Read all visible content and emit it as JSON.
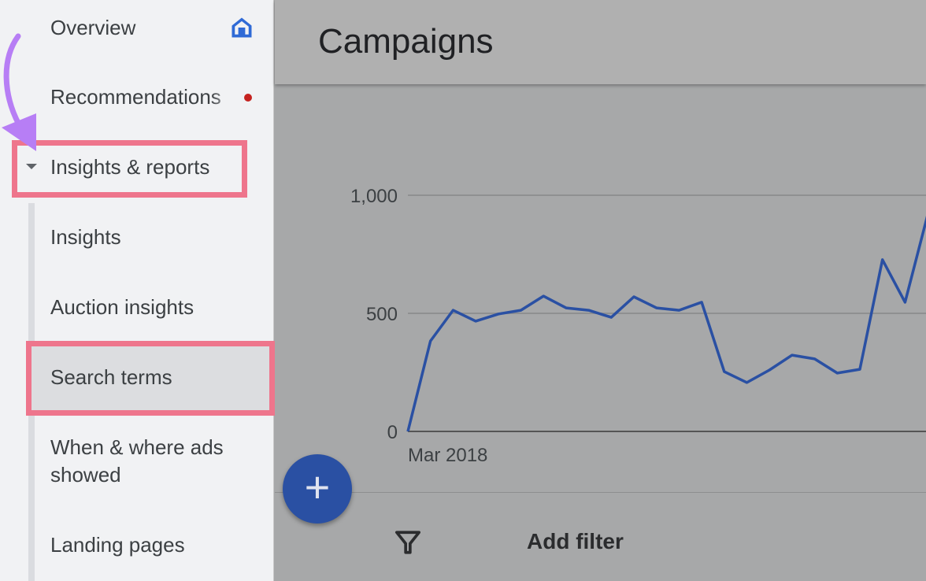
{
  "sidebar": {
    "items": [
      {
        "label": "Overview",
        "icon": "home-icon"
      },
      {
        "label": "Recommendations",
        "badge": "red-dot"
      },
      {
        "label": "Insights & reports",
        "expanded": true
      },
      {
        "label": "Insights"
      },
      {
        "label": "Auction insights"
      },
      {
        "label": "Search terms",
        "selected": true
      },
      {
        "label": "When & where ads showed",
        "line1": "When & where ads",
        "line2": "showed"
      },
      {
        "label": "Landing pages"
      }
    ]
  },
  "main": {
    "title": "Campaigns",
    "add_filter": "Add filter",
    "fab": "+"
  },
  "colors": {
    "accent": "#2a50a3",
    "highlight": "#ee758c",
    "annotation_arrow": "#b77ef5",
    "badge": "#c5221f"
  },
  "chart_data": {
    "type": "line",
    "y_ticks": [
      "1,000",
      "500",
      "0"
    ],
    "ylim": [
      0,
      1000
    ],
    "x_tick_label": "Mar 2018",
    "grid": true,
    "values": [
      0,
      383,
      513,
      467,
      497,
      513,
      573,
      523,
      513,
      483,
      570,
      523,
      513,
      547,
      253,
      207,
      260,
      323,
      307,
      247,
      263,
      727,
      547,
      917
    ]
  }
}
